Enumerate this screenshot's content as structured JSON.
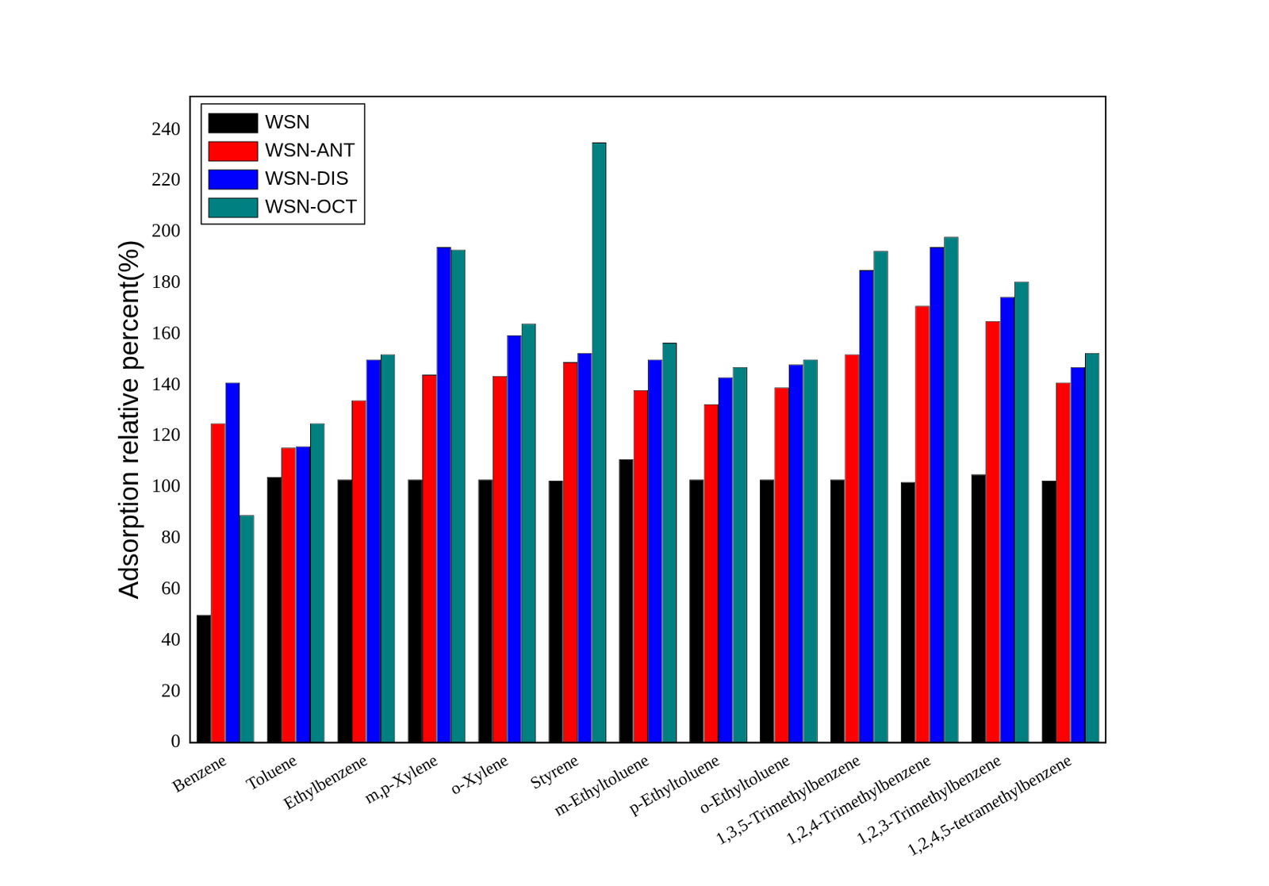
{
  "chart_data": {
    "type": "bar",
    "y_label": "Adsorption relative percent(%)",
    "categories": [
      "Benzene",
      "Toluene",
      "Ethylbenzene",
      "m,p-Xylene",
      "o-Xylene",
      "Styrene",
      "m-Ethyltoluene",
      "p-Ethyltoluene",
      "o-Ethyltoluene",
      "1,3,5-Trimethylbenzene",
      "1,2,4-Trimethylbenzene",
      "1,2,3-Trimethylbenzene",
      "1,2,4,5-tetramethylbenzene"
    ],
    "series": [
      {
        "name": "WSN",
        "color": "#000000",
        "values": [
          50,
          104,
          103,
          103,
          103,
          102.5,
          111,
          103,
          103,
          103,
          102,
          105,
          102.5
        ]
      },
      {
        "name": "WSN-ANT",
        "color": "#ff0000",
        "values": [
          125,
          115.5,
          134,
          144,
          143.5,
          149,
          138,
          132.5,
          139,
          152,
          171,
          165,
          141
        ]
      },
      {
        "name": "WSN-DIS",
        "color": "#0000ff",
        "values": [
          141,
          116,
          150,
          194,
          159.5,
          152.5,
          150,
          143,
          148,
          185,
          194,
          174.5,
          147
        ]
      },
      {
        "name": "WSN-OCT",
        "color": "#008080",
        "values": [
          89,
          125,
          152,
          193,
          164,
          235,
          156.5,
          147,
          150,
          192.5,
          198,
          180.5,
          152.5
        ]
      }
    ],
    "ylim": [
      0,
      253
    ],
    "yticks": [
      0,
      20,
      40,
      60,
      80,
      100,
      120,
      140,
      160,
      180,
      200,
      220,
      240
    ],
    "grid": false,
    "legend": "upper left"
  }
}
